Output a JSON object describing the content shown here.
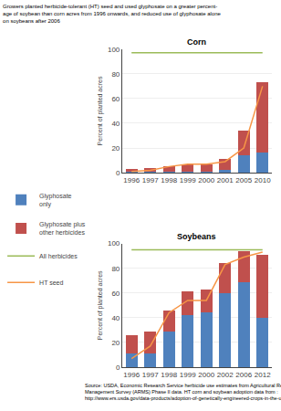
{
  "title": "Growers planted herbicide-tolerant (HT) seed and used glyphosate on a greater percent-\nage of soybean than corn acres from 1996 onwards, and reduced use of glyphosate alone\non soybeans after 2006",
  "annotations": [
    "Source: USDA, Economic Research Service herbicide use estimates from Agricultural Resource\nManagement Survey (ARMS) Phase II data. HT corn and soybean adoption data from :\nhttp://www.ers.usda.gov/data-products/adoption-of-genetically-engineered-crops-in-the-us.aspx"
  ],
  "chart_data": [
    {
      "type": "bar",
      "stacked": true,
      "title": "Corn",
      "ylabel": "Percent of planted acres",
      "categories": [
        "1996",
        "1997",
        "1998",
        "1999",
        "2000",
        "2001",
        "2005",
        "2010"
      ],
      "series": [
        {
          "name": "Glyphosate\nonly",
          "type": "bar",
          "color": "#4f81bd",
          "values": [
            1,
            1,
            1,
            1,
            1,
            2,
            14,
            16
          ]
        },
        {
          "name": "Glyphosate plus\nother herbicides",
          "type": "bar",
          "color": "#c0504d",
          "values": [
            2,
            3,
            4,
            6,
            6,
            9,
            20,
            57
          ]
        },
        {
          "name": "All herbicides",
          "type": "line",
          "color": "#9bbb59",
          "values": [
            97,
            97,
            97,
            97,
            97,
            97,
            97,
            97
          ]
        },
        {
          "name": "HT seed",
          "type": "line",
          "color": "#f79646",
          "values": [
            1,
            2,
            5,
            7,
            7,
            9,
            20,
            70
          ]
        }
      ],
      "ylim": [
        0,
        100
      ],
      "yticks": [
        0,
        20,
        40,
        60,
        80,
        100
      ],
      "grid": true,
      "legend": "bottom"
    },
    {
      "type": "bar",
      "stacked": true,
      "title": "Soybeans",
      "ylabel": "Percent of planted acres",
      "categories": [
        "1996",
        "1997",
        "1998",
        "1999",
        "2000",
        "2002",
        "2006",
        "2012"
      ],
      "series": [
        {
          "name": "Glyphosate\nonly",
          "type": "bar",
          "color": "#4f81bd",
          "values": [
            11,
            11,
            29,
            42,
            44,
            60,
            69,
            40
          ]
        },
        {
          "name": "Glyphosate plus\nother herbicides",
          "type": "bar",
          "color": "#c0504d",
          "values": [
            15,
            18,
            17,
            19,
            19,
            24,
            25,
            51
          ]
        },
        {
          "name": "All herbicides",
          "type": "line",
          "color": "#9bbb59",
          "values": [
            95,
            95,
            95,
            95,
            95,
            95,
            95,
            95
          ]
        },
        {
          "name": "HT seed",
          "type": "line",
          "color": "#f79646",
          "values": [
            7,
            17,
            44,
            54,
            54,
            83,
            89,
            93
          ]
        }
      ],
      "ylim": [
        0,
        100
      ],
      "yticks": [
        0,
        20,
        40,
        60,
        80,
        100
      ],
      "grid": true
    }
  ]
}
